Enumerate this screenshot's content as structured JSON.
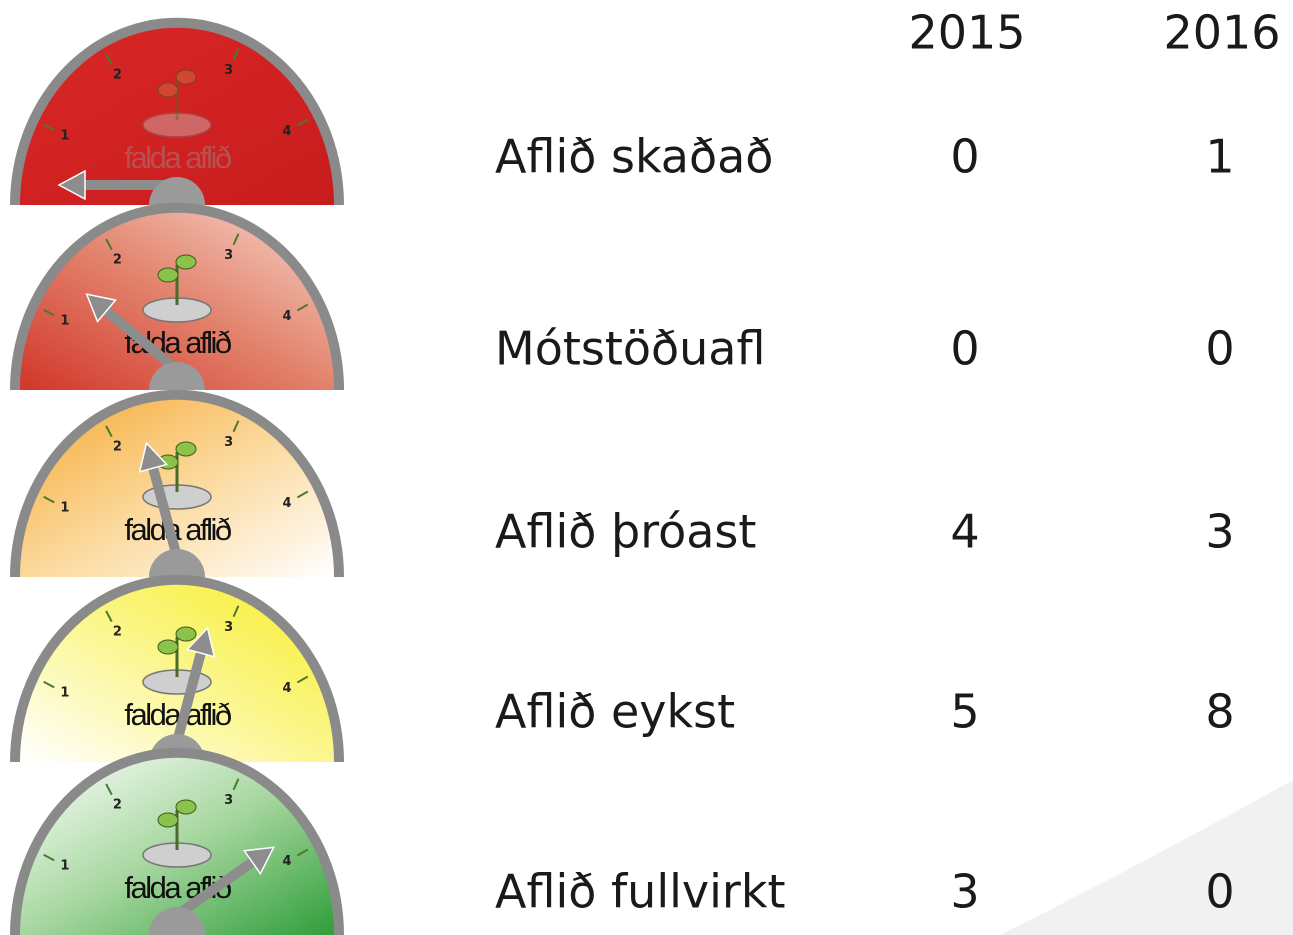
{
  "header": {
    "years": [
      "2015",
      "2016"
    ]
  },
  "gauge": {
    "label": "falda aflið",
    "ticks": [
      "1",
      "2",
      "3",
      "4"
    ]
  },
  "table": {
    "rows": [
      {
        "label": "Aflið skaðað",
        "values": [
          0,
          1
        ]
      },
      {
        "label": "Mótstöðuafl",
        "values": [
          0,
          0
        ]
      },
      {
        "label": "Aflið þróast",
        "values": [
          4,
          3
        ]
      },
      {
        "label": "Aflið eykst",
        "values": [
          5,
          8
        ]
      },
      {
        "label": "Aflið fullvirkt",
        "values": [
          3,
          0
        ]
      }
    ]
  }
}
